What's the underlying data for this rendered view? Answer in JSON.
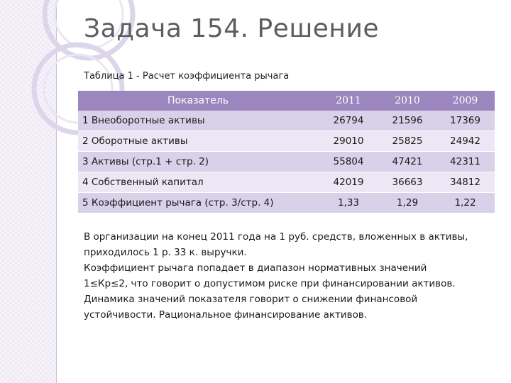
{
  "slide": {
    "title": "Задача 154. Решение",
    "caption": "Таблица 1 - Расчет коэффициента рычага"
  },
  "table": {
    "header": {
      "label": "Показатель",
      "years": [
        "2011",
        "2010",
        "2009"
      ]
    },
    "rows": [
      {
        "label": "1 Внеоборотные активы",
        "v2011": "26794",
        "v2010": "21596",
        "v2009": "17369"
      },
      {
        "label": "2 Оборотные активы",
        "v2011": "29010",
        "v2010": "25825",
        "v2009": "24942"
      },
      {
        "label": "3 Активы (стр.1 + стр. 2)",
        "v2011": "55804",
        "v2010": "47421",
        "v2009": "42311"
      },
      {
        "label": "4 Собственный капитал",
        "v2011": "42019",
        "v2010": "36663",
        "v2009": "34812"
      },
      {
        "label": "5 Коэффициент рычага (стр. 3/стр. 4)",
        "v2011": "1,33",
        "v2010": "1,29",
        "v2009": "1,22"
      }
    ]
  },
  "conclusion": {
    "lines": [
      "В организации на конец 2011 года на 1 руб. средств, вложенных в активы,",
      "приходилось 1 р. 33 к. выручки.",
      "Коэффициент рычага попадает в диапазон нормативных значений",
      "1≤Кр≤2, что говорит о допустимом риске при финансировании активов.",
      "Динамика значений показателя говорит о снижении финансовой",
      "устойчивости. Рациональное финансирование активов."
    ]
  },
  "colors": {
    "header_bg": "#9b86bd",
    "row_odd": "#d9d0e9",
    "row_even": "#ece7f4",
    "title": "#5d5d5d"
  }
}
